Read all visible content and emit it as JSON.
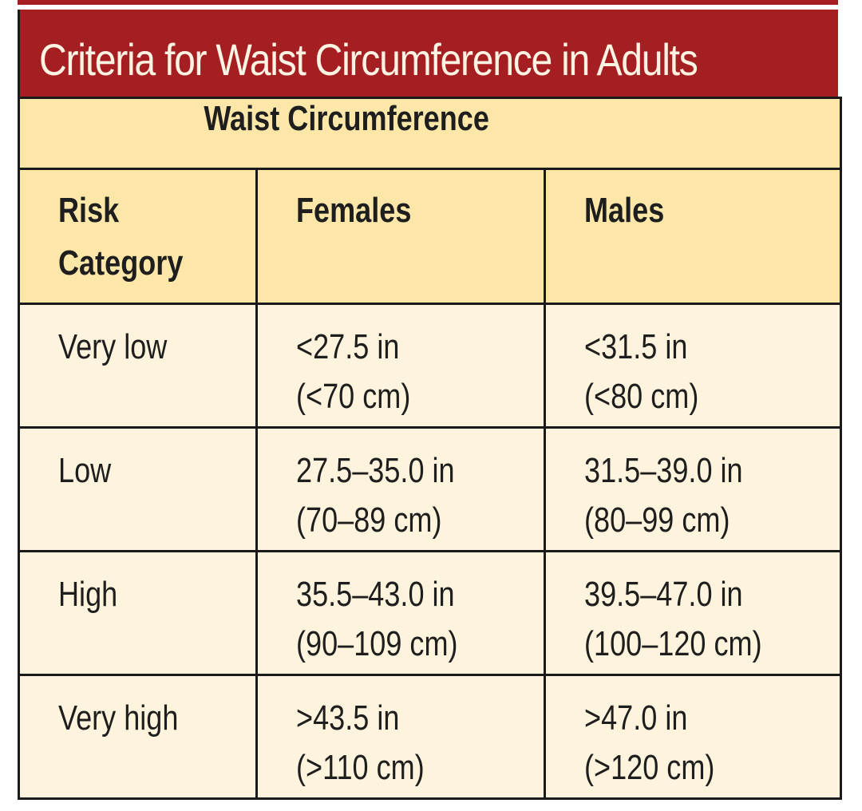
{
  "title": "Criteria for Waist Circumference in Adults",
  "group_header": "Waist Circumference",
  "columns": {
    "risk_line1": "Risk",
    "risk_line2": "Category",
    "females": "Females",
    "males": "Males"
  },
  "rows": [
    {
      "category": "Very low",
      "females_in": "<27.5 in",
      "females_cm": "(<70 cm)",
      "males_in": "<31.5 in",
      "males_cm": "(<80 cm)"
    },
    {
      "category": "Low",
      "females_in": "27.5–35.0 in",
      "females_cm": "(70–89 cm)",
      "males_in": "31.5–39.0 in",
      "males_cm": "(80–99 cm)"
    },
    {
      "category": "High",
      "females_in": "35.5–43.0 in",
      "females_cm": "(90–109 cm)",
      "males_in": "39.5–47.0 in",
      "males_cm": "(100–120 cm)"
    },
    {
      "category": "Very high",
      "females_in": ">43.5 in",
      "females_cm": "(>110 cm)",
      "males_in": ">47.0 in",
      "males_cm": "(>120 cm)"
    }
  ],
  "colors": {
    "title_bar": "#a51e22",
    "title_text": "#fdf3e3",
    "header_fill": "#fce6a8",
    "body_fill": "#fef3dc",
    "border": "#1a1a1a"
  }
}
